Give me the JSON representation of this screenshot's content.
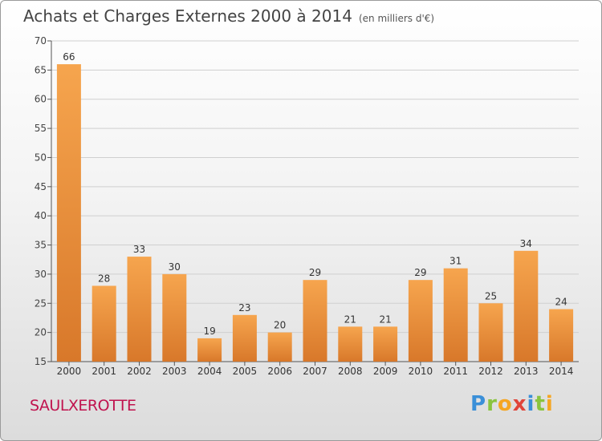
{
  "title": "Achats et Charges Externes 2000 à 2014",
  "subtitle": "(en milliers d'€)",
  "commune": "SAULXEROTTE",
  "brand": {
    "letters": [
      {
        "ch": "P",
        "color": "#3a8fd8"
      },
      {
        "ch": "r",
        "color": "#8ac43f"
      },
      {
        "ch": "o",
        "color": "#f5a623"
      },
      {
        "ch": "x",
        "color": "#e0453a"
      },
      {
        "ch": "i",
        "color": "#3a8fd8"
      },
      {
        "ch": "t",
        "color": "#8ac43f"
      },
      {
        "ch": "i",
        "color": "#f5a623"
      }
    ]
  },
  "colors": {
    "bar_top": "#f6a54e",
    "bar_bottom": "#d8782a",
    "grid": "#cfcfcf",
    "axis": "#555555",
    "commune": "#c0134e"
  },
  "chart_data": {
    "type": "bar",
    "categories": [
      "2000",
      "2001",
      "2002",
      "2003",
      "2004",
      "2005",
      "2006",
      "2007",
      "2008",
      "2009",
      "2010",
      "2011",
      "2012",
      "2013",
      "2014"
    ],
    "values": [
      66,
      28,
      33,
      30,
      19,
      23,
      20,
      29,
      21,
      21,
      29,
      31,
      25,
      34,
      24
    ],
    "ylim": [
      15,
      70
    ],
    "yticks": [
      15,
      20,
      25,
      30,
      35,
      40,
      45,
      50,
      55,
      60,
      65,
      70
    ],
    "grid": true,
    "legend": "none"
  }
}
